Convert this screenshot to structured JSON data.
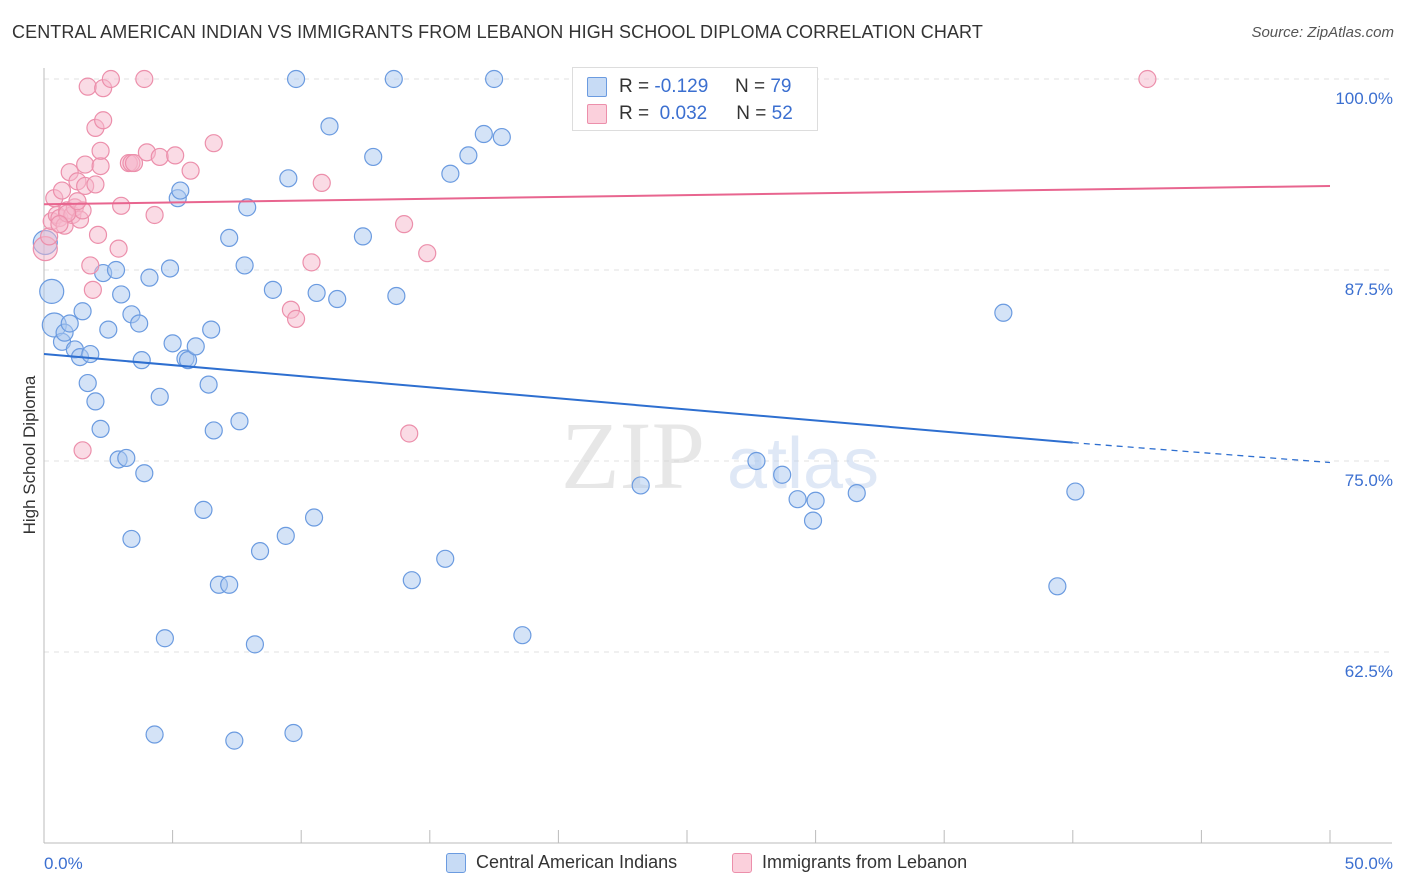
{
  "title": "CENTRAL AMERICAN INDIAN VS IMMIGRANTS FROM LEBANON HIGH SCHOOL DIPLOMA CORRELATION CHART",
  "source": "Source: ZipAtlas.com",
  "watermark": {
    "zip": "ZIP",
    "atlas": "atlas"
  },
  "colors": {
    "blue_fill": "#aac8f0",
    "blue_stroke": "#6b9be0",
    "blue_line": "#2e6fd0",
    "pink_fill": "#f6b8cb",
    "pink_stroke": "#ec8fab",
    "pink_line": "#e8658f",
    "axis_label": "#3b6fd0",
    "grid": "#e2e2e2"
  },
  "stats": {
    "blue": {
      "r_label": "R =",
      "r_value": "-0.129",
      "n_label": "N =",
      "n_value": "79"
    },
    "pink": {
      "r_label": "R =",
      "r_value": "0.032",
      "n_label": "N =",
      "n_value": "52"
    }
  },
  "legend": {
    "blue_label": "Central American Indians",
    "pink_label": "Immigrants from Lebanon"
  },
  "chart_data": {
    "type": "scatter",
    "xlabel": "",
    "ylabel": "High School Diploma",
    "xlim": [
      0,
      50
    ],
    "ylim": [
      50.5,
      101
    ],
    "x_tick_labels": [
      "0.0%",
      "50.0%"
    ],
    "y_ticks": [
      100,
      87.5,
      75,
      62.5
    ],
    "y_tick_labels": [
      "100.0%",
      "87.5%",
      "75.0%",
      "62.5%"
    ],
    "series": [
      {
        "name": "Central American Indians",
        "color": "blue",
        "trend": {
          "x0": 0,
          "y0": 82.0,
          "x1": 40.0,
          "y1": 76.2,
          "dash_x1": 50,
          "dash_y1": 74.9
        },
        "points": [
          [
            0.05,
            89.3,
            2
          ],
          [
            0.3,
            86.1,
            2
          ],
          [
            0.4,
            83.9,
            2
          ],
          [
            0.7,
            82.8,
            1
          ],
          [
            0.8,
            83.4,
            1
          ],
          [
            1.0,
            84.0,
            1
          ],
          [
            1.2,
            82.3,
            1
          ],
          [
            1.4,
            81.8,
            1
          ],
          [
            1.5,
            84.8,
            1
          ],
          [
            1.7,
            80.1,
            1
          ],
          [
            1.8,
            82.0,
            1
          ],
          [
            2.0,
            78.9,
            1
          ],
          [
            2.2,
            77.1,
            1
          ],
          [
            2.3,
            87.3,
            1
          ],
          [
            2.5,
            83.6,
            1
          ],
          [
            2.8,
            87.5,
            1
          ],
          [
            2.9,
            75.1,
            1
          ],
          [
            3.0,
            85.9,
            1
          ],
          [
            3.2,
            75.2,
            1
          ],
          [
            3.4,
            84.6,
            1
          ],
          [
            3.4,
            69.9,
            1
          ],
          [
            3.7,
            84.0,
            1
          ],
          [
            3.8,
            81.6,
            1
          ],
          [
            3.9,
            74.2,
            1
          ],
          [
            4.1,
            87.0,
            1
          ],
          [
            4.3,
            57.1,
            1
          ],
          [
            4.5,
            79.2,
            1
          ],
          [
            4.7,
            63.4,
            1
          ],
          [
            4.9,
            87.6,
            1
          ],
          [
            5.0,
            82.7,
            1
          ],
          [
            5.2,
            92.2,
            1
          ],
          [
            5.3,
            92.7,
            1
          ],
          [
            5.5,
            81.7,
            1
          ],
          [
            5.6,
            81.6,
            1
          ],
          [
            5.9,
            82.5,
            1
          ],
          [
            6.2,
            71.8,
            1
          ],
          [
            6.4,
            80.0,
            1
          ],
          [
            6.5,
            83.6,
            1
          ],
          [
            6.6,
            77.0,
            1
          ],
          [
            6.8,
            66.9,
            1
          ],
          [
            7.2,
            66.9,
            1
          ],
          [
            7.2,
            89.6,
            1
          ],
          [
            7.4,
            56.7,
            1
          ],
          [
            7.6,
            77.6,
            1
          ],
          [
            7.8,
            87.8,
            1
          ],
          [
            7.9,
            91.6,
            1
          ],
          [
            8.2,
            63.0,
            1
          ],
          [
            8.4,
            69.1,
            1
          ],
          [
            8.9,
            86.2,
            1
          ],
          [
            9.4,
            70.1,
            1
          ],
          [
            9.5,
            93.5,
            1
          ],
          [
            9.7,
            57.2,
            1
          ],
          [
            9.8,
            100.0,
            1
          ],
          [
            10.5,
            71.3,
            1
          ],
          [
            10.6,
            86.0,
            1
          ],
          [
            11.1,
            96.9,
            1
          ],
          [
            11.4,
            85.6,
            1
          ],
          [
            12.4,
            89.7,
            1
          ],
          [
            12.8,
            94.9,
            1
          ],
          [
            13.6,
            100.0,
            1
          ],
          [
            13.7,
            85.8,
            1
          ],
          [
            14.3,
            67.2,
            1
          ],
          [
            15.6,
            68.6,
            1
          ],
          [
            15.8,
            93.8,
            1
          ],
          [
            16.5,
            95.0,
            1
          ],
          [
            17.1,
            96.4,
            1
          ],
          [
            17.5,
            100.0,
            1
          ],
          [
            17.8,
            96.2,
            1
          ],
          [
            18.6,
            63.6,
            1
          ],
          [
            23.2,
            73.4,
            1
          ],
          [
            27.7,
            75.0,
            1
          ],
          [
            28.7,
            74.1,
            1
          ],
          [
            29.3,
            72.5,
            1
          ],
          [
            29.9,
            71.1,
            1
          ],
          [
            30.0,
            72.4,
            1
          ],
          [
            31.6,
            72.9,
            1
          ],
          [
            37.3,
            84.7,
            1
          ],
          [
            39.4,
            66.8,
            1
          ],
          [
            40.1,
            73.0,
            1
          ]
        ]
      },
      {
        "name": "Immigrants from Lebanon",
        "color": "pink",
        "trend": {
          "x0": 0,
          "y0": 91.8,
          "x1": 50,
          "y1": 93.0
        },
        "points": [
          [
            0.05,
            88.9,
            2
          ],
          [
            0.2,
            89.7,
            1
          ],
          [
            0.3,
            90.7,
            1
          ],
          [
            0.4,
            92.2,
            1
          ],
          [
            0.5,
            91.1,
            1
          ],
          [
            0.6,
            90.9,
            1
          ],
          [
            0.7,
            92.7,
            1
          ],
          [
            0.8,
            90.4,
            1
          ],
          [
            0.9,
            91.4,
            1
          ],
          [
            1.0,
            93.9,
            1
          ],
          [
            1.1,
            91.1,
            1
          ],
          [
            1.2,
            91.6,
            1
          ],
          [
            1.3,
            93.3,
            1
          ],
          [
            1.4,
            90.8,
            1
          ],
          [
            1.5,
            91.4,
            1
          ],
          [
            1.6,
            93.0,
            1
          ],
          [
            1.6,
            94.4,
            1
          ],
          [
            1.7,
            99.5,
            1
          ],
          [
            1.8,
            87.8,
            1
          ],
          [
            1.9,
            86.2,
            1
          ],
          [
            2.0,
            96.8,
            1
          ],
          [
            2.1,
            89.8,
            1
          ],
          [
            2.2,
            94.3,
            1
          ],
          [
            2.2,
            95.3,
            1
          ],
          [
            2.3,
            97.3,
            1
          ],
          [
            2.3,
            99.4,
            1
          ],
          [
            2.6,
            100.0,
            1
          ],
          [
            2.9,
            88.9,
            1
          ],
          [
            3.0,
            91.7,
            1
          ],
          [
            3.3,
            94.5,
            1
          ],
          [
            3.4,
            94.5,
            1
          ],
          [
            3.5,
            94.5,
            1
          ],
          [
            3.9,
            100.0,
            1
          ],
          [
            4.0,
            95.2,
            1
          ],
          [
            4.3,
            91.1,
            1
          ],
          [
            4.5,
            94.9,
            1
          ],
          [
            5.1,
            95.0,
            1
          ],
          [
            5.7,
            94.0,
            1
          ],
          [
            6.6,
            95.8,
            1
          ],
          [
            9.6,
            84.9,
            1
          ],
          [
            9.8,
            84.3,
            1
          ],
          [
            10.4,
            88.0,
            1
          ],
          [
            10.8,
            93.2,
            1
          ],
          [
            14.0,
            90.5,
            1
          ],
          [
            14.9,
            88.6,
            1
          ],
          [
            14.2,
            76.8,
            1
          ],
          [
            1.5,
            75.7,
            1
          ],
          [
            42.9,
            100.0,
            1
          ],
          [
            0.9,
            91.2,
            1
          ],
          [
            2.0,
            93.1,
            1
          ],
          [
            1.3,
            92.0,
            1
          ],
          [
            0.6,
            90.5,
            1
          ]
        ]
      }
    ]
  }
}
